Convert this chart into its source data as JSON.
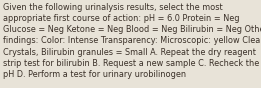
{
  "lines": [
    "Given the following urinalysis results, select the most",
    "appropriate first course of action: pH = 6.0 Protein = Neg",
    "Glucose = Neg Ketone = Neg Blood = Neg Bilirubin = Neg Other",
    "findings: Color: Intense Transparency: Microscopic: yellow Clear",
    "Crystals, Bilirubin granules = Small A. Repeat the dry reagent",
    "strip test for bilirubin B. Request a new sample C. Recheck the",
    "pH D. Perform a test for urinary urobilinogen"
  ],
  "background_color": "#e8e3d8",
  "text_color": "#3a3028",
  "font_size": 5.85,
  "fig_width": 2.61,
  "fig_height": 0.88,
  "dpi": 100
}
